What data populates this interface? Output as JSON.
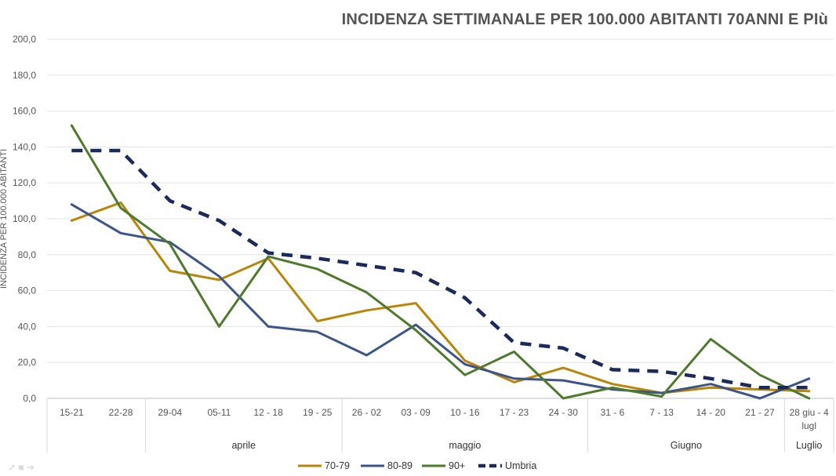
{
  "chart_data": {
    "type": "line",
    "title": "INCIDENZA SETTIMANALE PER 100.000 ABITANTI 70ANNI E PIù",
    "ylabel": "INCIDENZA PER 100.000 ABITANTI",
    "xlabel": "",
    "ylim": [
      0,
      200
    ],
    "yticks": [
      "0,0",
      "20,0",
      "40,0",
      "60,0",
      "80,0",
      "100,0",
      "120,0",
      "140,0",
      "160,0",
      "180,0",
      "200,0"
    ],
    "categories": [
      "15-21",
      "22-28",
      "29-04",
      "05-11",
      "12 - 18",
      "19 - 25",
      "26 - 02",
      "03 - 09",
      "10 - 16",
      "17 - 23",
      "24 - 30",
      "31 - 6",
      "7 - 13",
      "14 - 20",
      "21 - 27",
      "28 giu - 4 lugl"
    ],
    "groups": [
      {
        "label": "",
        "from": 0,
        "to": 1
      },
      {
        "label": "aprile",
        "from": 2,
        "to": 5
      },
      {
        "label": "maggio",
        "from": 6,
        "to": 10
      },
      {
        "label": "Giugno",
        "from": 11,
        "to": 14
      },
      {
        "label": "Luglio",
        "from": 15,
        "to": 15
      }
    ],
    "grid": true,
    "legend_position": "bottom",
    "series": [
      {
        "name": "70-79",
        "color": "#b8860b",
        "dash": false,
        "values": [
          99,
          109,
          71,
          66,
          78,
          43,
          49,
          53,
          21,
          9,
          17,
          8,
          3,
          6,
          5,
          4
        ]
      },
      {
        "name": "80-89",
        "color": "#3c5488",
        "dash": false,
        "values": [
          108,
          92,
          87,
          68,
          40,
          37,
          24,
          41,
          19,
          11,
          10,
          5,
          3,
          8,
          0,
          11
        ]
      },
      {
        "name": "90+",
        "color": "#4f7a2e",
        "dash": false,
        "values": [
          152,
          106,
          86,
          40,
          79,
          72,
          59,
          38,
          13,
          26,
          0,
          6,
          1,
          33,
          13,
          0
        ]
      },
      {
        "name": "Umbria",
        "color": "#1a2a5a",
        "dash": true,
        "values": [
          138,
          138,
          110,
          99,
          81,
          78,
          74,
          70,
          56,
          31,
          28,
          16,
          15,
          11,
          6,
          6
        ]
      }
    ]
  }
}
